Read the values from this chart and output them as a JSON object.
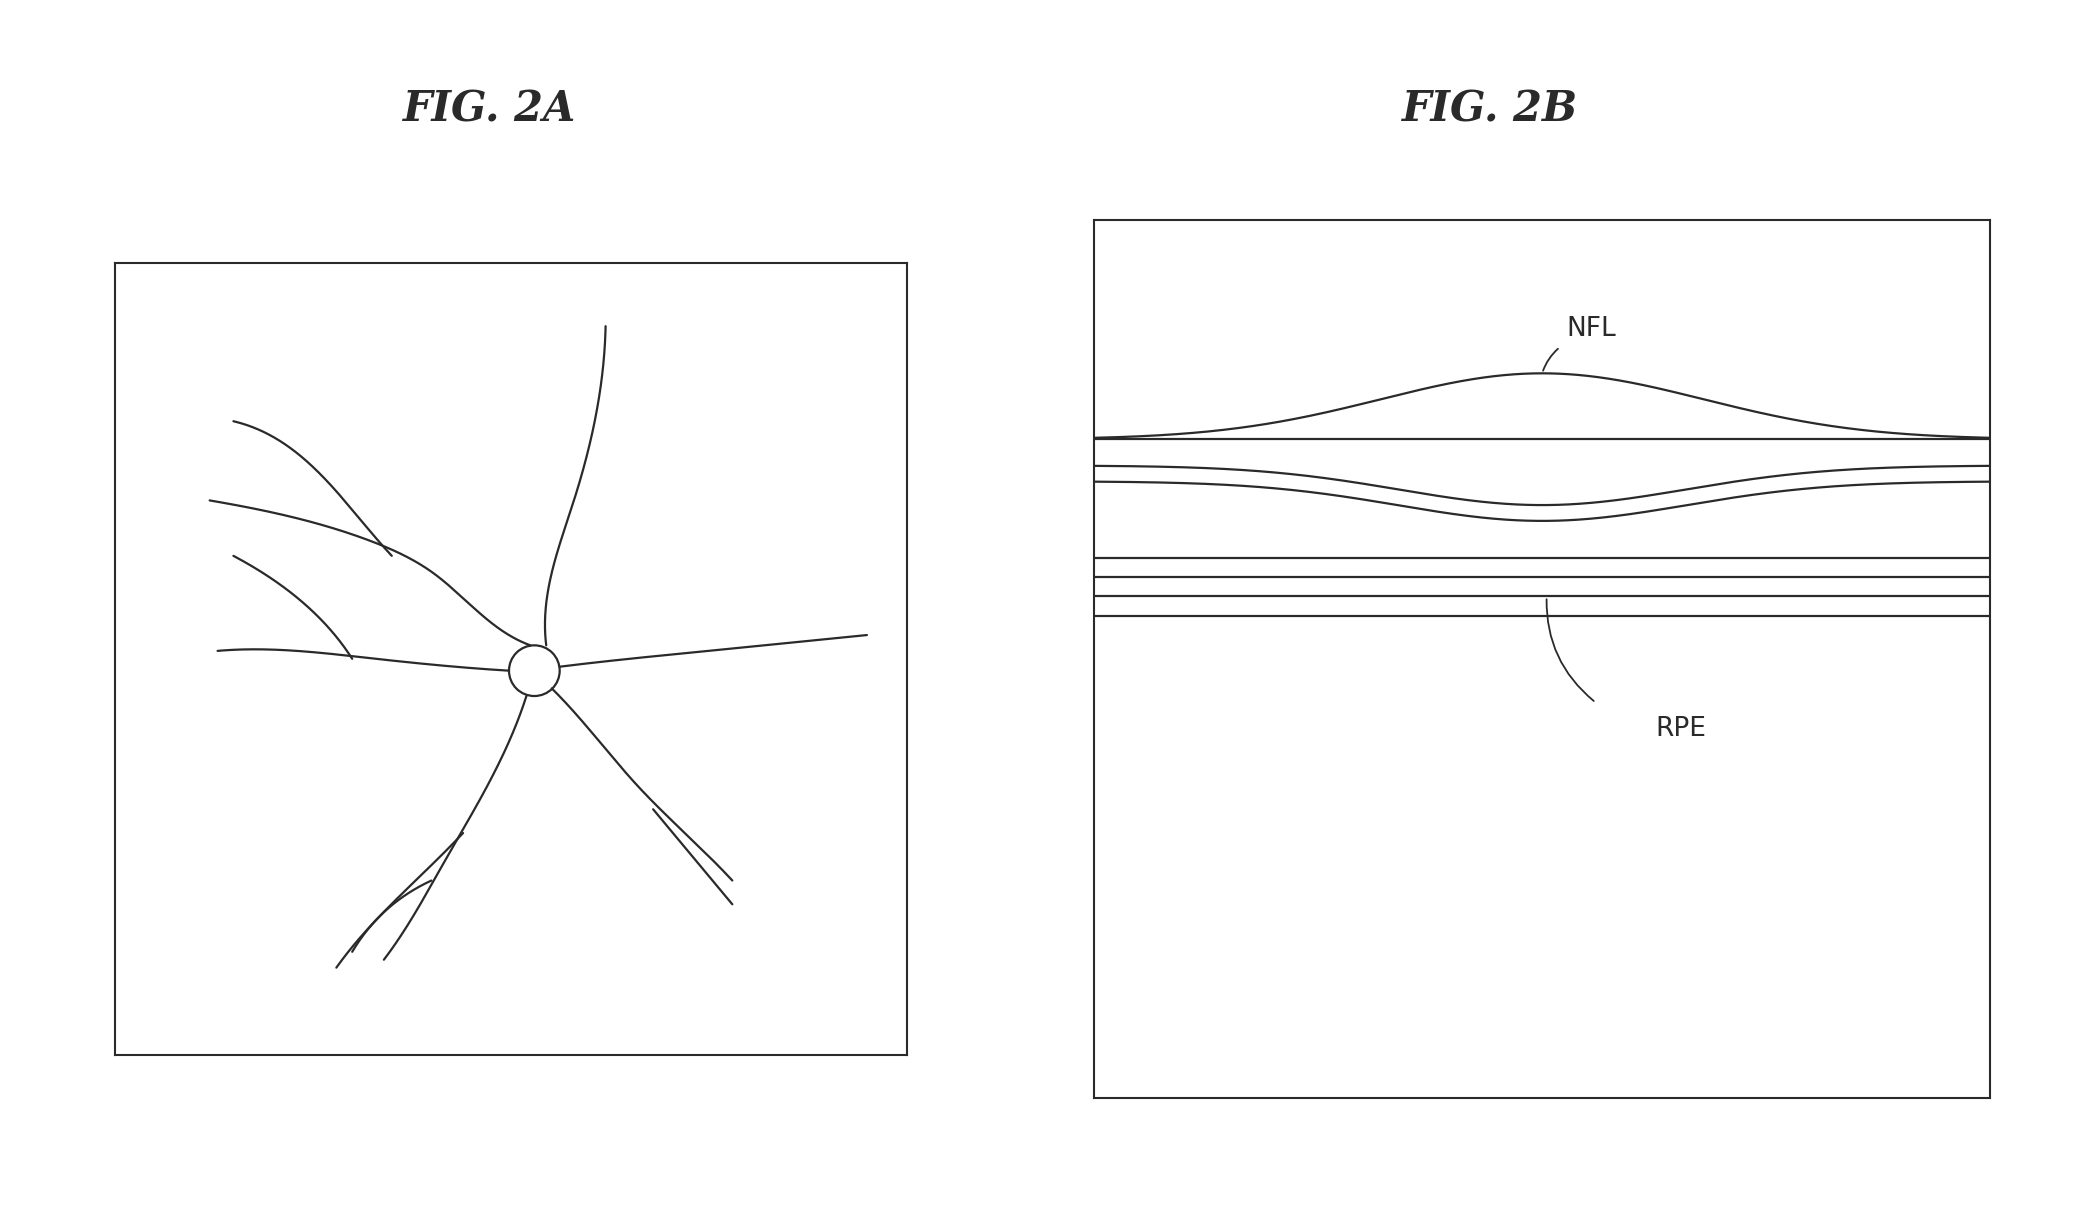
{
  "bg_color": "#ffffff",
  "line_color": "#2a2a2a",
  "title_2a": "FIG. 2A",
  "title_2b": "FIG. 2B",
  "label_nfl": "NFL",
  "label_rpe": "RPE",
  "fig_width": 20.84,
  "fig_height": 12.2,
  "line_width": 1.6,
  "title_fontsize": 30,
  "label_fontsize": 19
}
